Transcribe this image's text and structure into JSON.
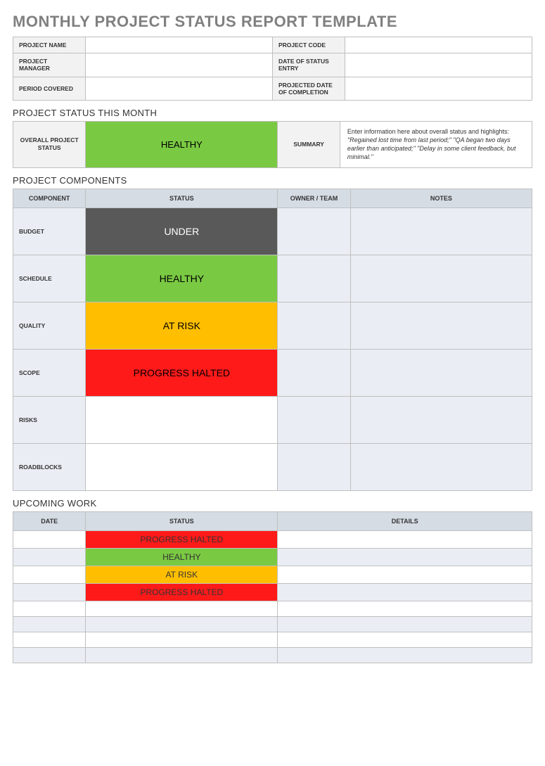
{
  "colors": {
    "healthy": "#7ac943",
    "under": "#595959",
    "at_risk": "#ffbf00",
    "halted": "#ff1a1a",
    "header_bg": "#d6dce4",
    "alt_row": "#eaeef4",
    "label_bg": "#f2f2f2",
    "border": "#bfbfbf",
    "title_gray": "#808080"
  },
  "title": "MONTHLY PROJECT STATUS REPORT TEMPLATE",
  "info": {
    "rows": [
      {
        "l1": "PROJECT NAME",
        "v1": "",
        "l2": "PROJECT CODE",
        "v2": ""
      },
      {
        "l1": "PROJECT MANAGER",
        "v1": "",
        "l2": "DATE OF STATUS ENTRY",
        "v2": ""
      },
      {
        "l1": "PERIOD COVERED",
        "v1": "",
        "l2": "PROJECTED DATE OF COMPLETION",
        "v2": ""
      }
    ]
  },
  "status_month": {
    "heading": "PROJECT STATUS THIS MONTH",
    "overall_label": "OVERALL PROJECT STATUS",
    "status_text": "HEALTHY",
    "status_color": "#7ac943",
    "summary_label": "SUMMARY",
    "summary_text_lead": "Enter information here about overall status and highlights: ",
    "summary_text_italic": "\"Regained lost time from last period;\" \"QA began two days earlier than anticipated;\" \"Delay in some client feedback, but minimal.\""
  },
  "components": {
    "heading": "PROJECT COMPONENTS",
    "columns": [
      "COMPONENT",
      "STATUS",
      "OWNER / TEAM",
      "NOTES"
    ],
    "col_widths": [
      "14%",
      "37%",
      "14%",
      "35%"
    ],
    "rows": [
      {
        "label": "BUDGET",
        "status": "UNDER",
        "color": "#595959",
        "text_color": "#ffffff",
        "owner": "",
        "notes": ""
      },
      {
        "label": "SCHEDULE",
        "status": "HEALTHY",
        "color": "#7ac943",
        "text_color": "#000000",
        "owner": "",
        "notes": ""
      },
      {
        "label": "QUALITY",
        "status": "AT RISK",
        "color": "#ffbf00",
        "text_color": "#000000",
        "owner": "",
        "notes": ""
      },
      {
        "label": "SCOPE",
        "status": "PROGRESS HALTED",
        "color": "#ff1a1a",
        "text_color": "#000000",
        "owner": "",
        "notes": ""
      },
      {
        "label": "RISKS",
        "status": "",
        "color": "#ffffff",
        "text_color": "#000000",
        "owner": "",
        "notes": ""
      },
      {
        "label": "ROADBLOCKS",
        "status": "",
        "color": "#ffffff",
        "text_color": "#000000",
        "owner": "",
        "notes": ""
      }
    ]
  },
  "upcoming": {
    "heading": "UPCOMING WORK",
    "columns": [
      "DATE",
      "STATUS",
      "DETAILS"
    ],
    "col_widths": [
      "14%",
      "37%",
      "49%"
    ],
    "rows": [
      {
        "date": "",
        "status": "PROGRESS HALTED",
        "color": "#ff1a1a",
        "details": ""
      },
      {
        "date": "",
        "status": "HEALTHY",
        "color": "#7ac943",
        "details": ""
      },
      {
        "date": "",
        "status": "AT RISK",
        "color": "#ffbf00",
        "details": ""
      },
      {
        "date": "",
        "status": "PROGRESS HALTED",
        "color": "#ff1a1a",
        "details": ""
      },
      {
        "date": "",
        "status": "",
        "color": "",
        "details": ""
      },
      {
        "date": "",
        "status": "",
        "color": "",
        "details": ""
      },
      {
        "date": "",
        "status": "",
        "color": "",
        "details": ""
      },
      {
        "date": "",
        "status": "",
        "color": "",
        "details": ""
      }
    ]
  }
}
